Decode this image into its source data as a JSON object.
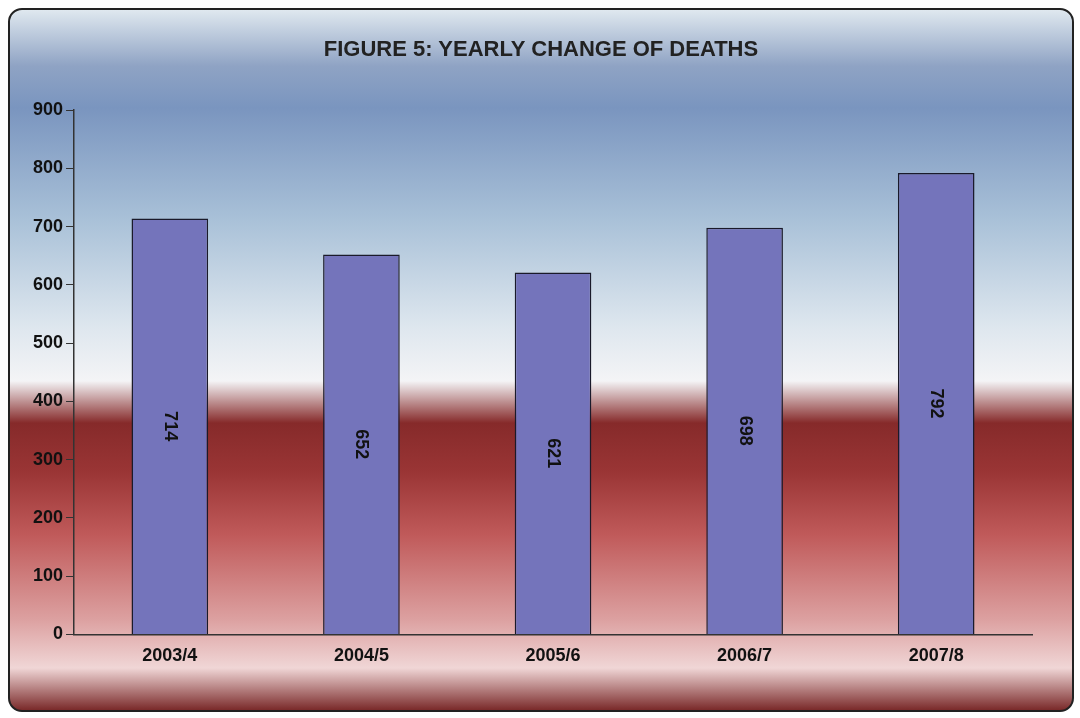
{
  "chart_data": {
    "type": "bar",
    "title": "FIGURE 5: YEARLY CHANGE OF DEATHS",
    "categories": [
      "2003/4",
      "2004/5",
      "2005/6",
      "2006/7",
      "2007/8"
    ],
    "values": [
      714,
      652,
      621,
      698,
      792
    ],
    "color": "#7474bb",
    "ylim": [
      0,
      900
    ],
    "yticks": [
      0,
      100,
      200,
      300,
      400,
      500,
      600,
      700,
      800,
      900
    ],
    "grid": false,
    "legend": false,
    "data_labels": true
  }
}
